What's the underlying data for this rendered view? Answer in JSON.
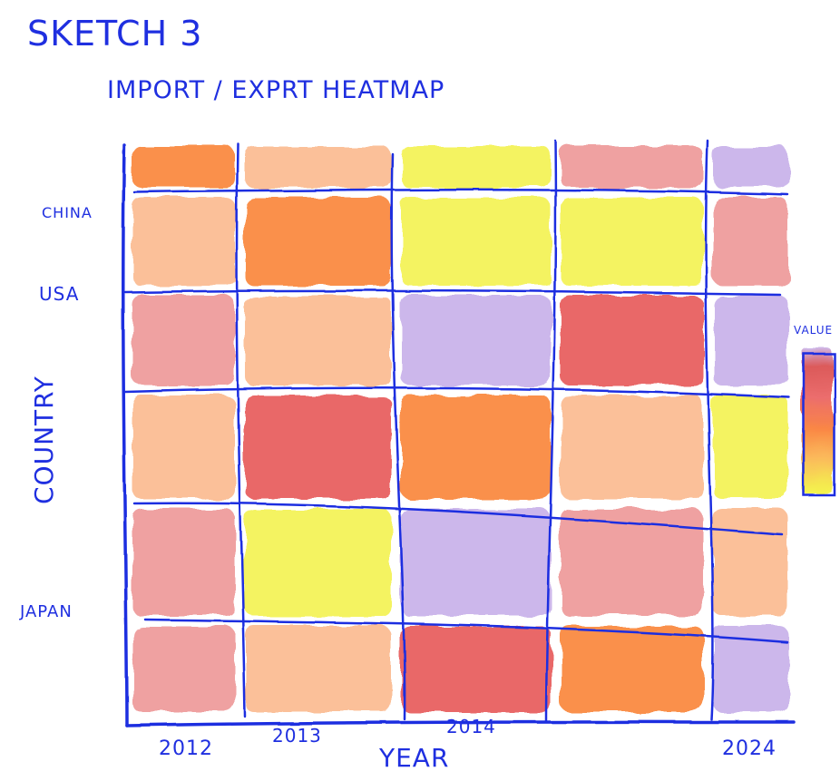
{
  "sketch_label": "SKETCH 3",
  "chart_data": {
    "type": "heatmap",
    "title": "IMPORT / EXPRT HEATMAP",
    "xlabel": "YEAR",
    "ylabel": "COUNTRY",
    "x_tick_labels": [
      "2012",
      "2013",
      "2014",
      "2024"
    ],
    "y_tick_labels": [
      "CHINA",
      "USA",
      "JAPAN"
    ],
    "legend_title": "VALUE",
    "grid": true,
    "legend_position": "right",
    "colorscale": [
      "#c9b3ea",
      "#f3f25a",
      "#fbbd93",
      "#ee9c9c",
      "#fa8a40",
      "#e86060"
    ],
    "values": [
      [
        5,
        3,
        2,
        4,
        1
      ],
      [
        3,
        5,
        2,
        2,
        4
      ],
      [
        4,
        3,
        1,
        6,
        1
      ],
      [
        3,
        6,
        5,
        3,
        2
      ],
      [
        4,
        2,
        1,
        4,
        3
      ],
      [
        4,
        3,
        6,
        5,
        1
      ]
    ]
  }
}
